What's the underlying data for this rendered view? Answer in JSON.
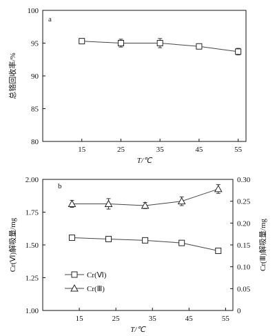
{
  "chart_data": [
    {
      "type": "line",
      "panel_label": "a",
      "xlabel": "T/℃",
      "ylabel": "总铬回收率/%",
      "xlim": [
        5,
        57
      ],
      "ylim": [
        80,
        100
      ],
      "x_ticks": [
        15,
        25,
        35,
        45,
        55
      ],
      "y_ticks": [
        80,
        85,
        90,
        95,
        100
      ],
      "series": [
        {
          "marker": "square",
          "x": [
            15,
            25,
            35,
            45,
            55
          ],
          "y": [
            95.3,
            95.0,
            95.0,
            94.5,
            93.7
          ],
          "err": [
            0.4,
            0.6,
            0.7,
            0.4,
            0.5
          ]
        }
      ]
    },
    {
      "type": "line",
      "panel_label": "b",
      "xlabel": "T/℃",
      "ylabel": "Cr(Ⅵ)解吸量/mg",
      "y2label": "Cr(Ⅲ)解吸量/mg",
      "xlim": [
        5,
        57
      ],
      "ylim": [
        1.0,
        2.0
      ],
      "y2lim": [
        0,
        0.3
      ],
      "x_ticks": [
        15,
        25,
        35,
        45,
        55
      ],
      "y_ticks": [
        "1.00",
        "1.25",
        "1.50",
        "1.75",
        "2.00"
      ],
      "y2_ticks": [
        "0",
        "0.05",
        "0.10",
        "0.15",
        "0.20",
        "0.25",
        "0.30"
      ],
      "series": [
        {
          "name": "Cr(Ⅵ)",
          "marker": "square",
          "axis": "left",
          "x": [
            13,
            23,
            33,
            43,
            53
          ],
          "y": [
            1.555,
            1.545,
            1.535,
            1.515,
            1.455
          ],
          "err": [
            0.01,
            0.012,
            0.015,
            0.008,
            0.01
          ]
        },
        {
          "name": "Cr(Ⅲ)",
          "marker": "triangle",
          "axis": "right",
          "x": [
            13,
            23,
            33,
            43,
            53
          ],
          "y": [
            0.244,
            0.244,
            0.24,
            0.25,
            0.278
          ],
          "err": [
            0.008,
            0.012,
            0.007,
            0.01,
            0.01
          ]
        }
      ]
    }
  ]
}
